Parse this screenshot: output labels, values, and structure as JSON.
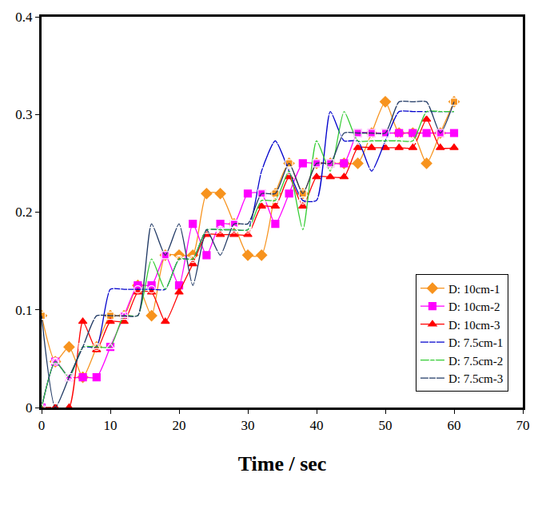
{
  "chart_data": {
    "type": "line",
    "x_label": "Time / sec",
    "x": [
      0,
      2,
      4,
      6,
      8,
      10,
      12,
      14,
      16,
      18,
      20,
      22,
      24,
      26,
      28,
      30,
      32,
      34,
      36,
      38,
      40,
      42,
      44,
      46,
      48,
      50,
      52,
      54,
      56,
      58,
      60
    ],
    "series": [
      {
        "name": "D: 10cm-1",
        "color": "#f7931e",
        "marker": "diamond",
        "values": [
          0.094,
          0.047,
          0.062,
          0.031,
          0.062,
          0.094,
          0.094,
          0.125,
          0.094,
          0.156,
          0.156,
          0.156,
          0.219,
          0.219,
          0.188,
          0.156,
          0.156,
          0.219,
          0.25,
          0.219,
          0.25,
          0.25,
          0.25,
          0.25,
          0.281,
          0.313,
          0.281,
          0.281,
          0.25,
          0.281,
          0.313
        ]
      },
      {
        "name": "D: 10cm-2",
        "color": "#ff00ff",
        "marker": "square",
        "values": [
          0,
          0.047,
          0.031,
          0.031,
          0.031,
          0.062,
          0.094,
          0.125,
          0.125,
          0.156,
          0.125,
          0.188,
          0.156,
          0.188,
          0.188,
          0.219,
          0.219,
          0.188,
          0.219,
          0.25,
          0.25,
          0.25,
          0.25,
          0.281,
          0.281,
          0.281,
          0.281,
          0.281,
          0.281,
          0.281,
          0.281
        ]
      },
      {
        "name": "D: 10cm-3",
        "color": "#ff0000",
        "marker": "triangle-up",
        "values": [
          0,
          0,
          0,
          0.088,
          0.059,
          0.088,
          0.088,
          0.118,
          0.118,
          0.088,
          0.118,
          0.147,
          0.177,
          0.177,
          0.177,
          0.177,
          0.206,
          0.206,
          0.236,
          0.206,
          0.236,
          0.236,
          0.236,
          0.266,
          0.266,
          0.266,
          0.266,
          0.266,
          0.295,
          0.266,
          0.266
        ]
      },
      {
        "name": "D: 7.5cm-1",
        "color": "#0000cc",
        "marker": "circle-open",
        "values": [
          0,
          0.047,
          0.031,
          0.062,
          0.062,
          0.121,
          0.121,
          0.121,
          0.121,
          0.121,
          0.152,
          0.152,
          0.182,
          0.182,
          0.182,
          0.182,
          0.242,
          0.273,
          0.242,
          0.212,
          0.212,
          0.303,
          0.273,
          0.273,
          0.242,
          0.273,
          0.303,
          0.303,
          0.303,
          0.303,
          0.303
        ]
      },
      {
        "name": "D: 7.5cm-2",
        "color": "#33cc33",
        "marker": "triangle-up-open",
        "values": [
          0,
          0.047,
          0.031,
          0.062,
          0.062,
          0.062,
          0.094,
          0.094,
          0.152,
          0.121,
          0.152,
          0.152,
          0.182,
          0.182,
          0.182,
          0.182,
          0.212,
          0.212,
          0.242,
          0.182,
          0.273,
          0.242,
          0.303,
          0.273,
          0.273,
          0.273,
          0.273,
          0.273,
          0.303,
          0.303,
          0.303
        ]
      },
      {
        "name": "D: 7.5cm-3",
        "color": "#1f3864",
        "marker": "square-open",
        "values": [
          0.094,
          0,
          0.031,
          0.062,
          0.094,
          0.094,
          0.094,
          0.094,
          0.188,
          0.156,
          0.188,
          0.125,
          0.182,
          0.156,
          0.188,
          0.188,
          0.219,
          0.219,
          0.25,
          0.219,
          0.25,
          0.25,
          0.281,
          0.281,
          0.281,
          0.281,
          0.313,
          0.313,
          0.313,
          0.281,
          0.313
        ]
      }
    ],
    "xlim": [
      0,
      70
    ],
    "xticks": [
      0,
      10,
      20,
      30,
      40,
      50,
      60,
      70
    ],
    "ylim": [
      0,
      0.4
    ],
    "yticks": [
      0,
      0.1,
      0.2,
      0.3,
      0.4
    ],
    "grid": false,
    "legend": "bottom right"
  }
}
